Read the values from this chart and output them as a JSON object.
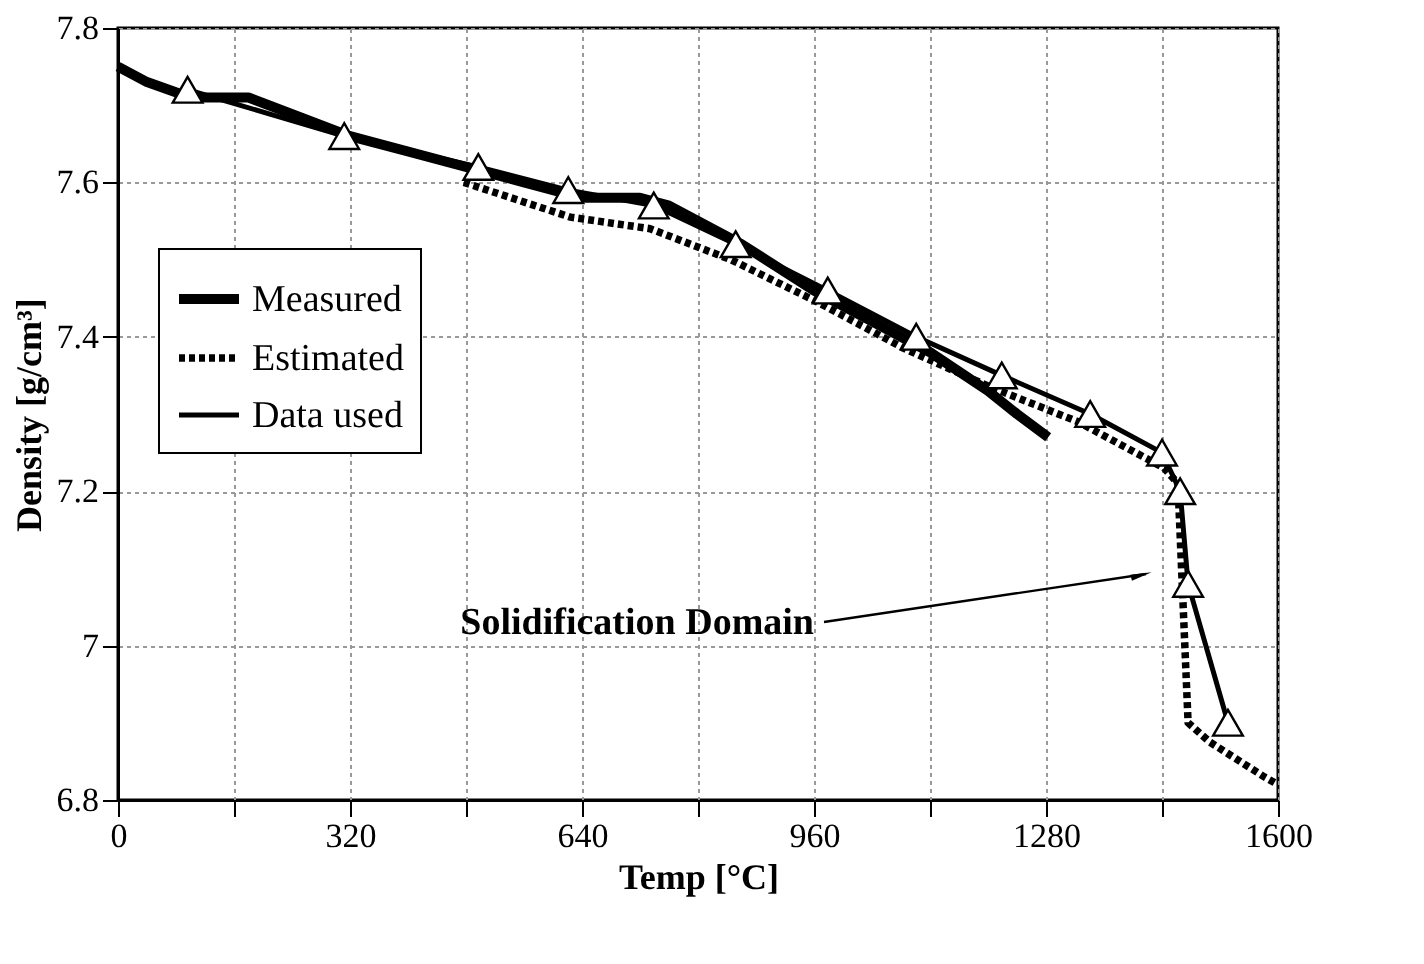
{
  "chart_data": {
    "type": "line",
    "xlabel": "Temp [°C]",
    "ylabel": "Density [g/cm³]",
    "xlim": [
      0,
      1600
    ],
    "ylim": [
      6.8,
      7.8
    ],
    "xticks": [
      0,
      {
        "value": 160,
        "label": null
      },
      320,
      {
        "value": 480,
        "label": null
      },
      640,
      {
        "value": 800,
        "label": null
      },
      960,
      {
        "value": 1120,
        "label": null
      },
      1280,
      {
        "value": 1440,
        "label": null
      },
      1600
    ],
    "yticks": [
      6.8,
      7,
      7.2,
      7.4,
      7.6,
      7.8
    ],
    "grid": true,
    "legend": "left",
    "series": [
      {
        "name": "Measured",
        "color": "#000000",
        "line_style": "solid",
        "marker": "none",
        "x": [
          0,
          40,
          100,
          180,
          320,
          400,
          480,
          560,
          640,
          720,
          760,
          860,
          960,
          1040,
          1120,
          1200,
          1240,
          1283
        ],
        "values": [
          7.75,
          7.73,
          7.71,
          7.71,
          7.66,
          7.64,
          7.62,
          7.6,
          7.58,
          7.58,
          7.57,
          7.52,
          7.46,
          7.42,
          7.38,
          7.33,
          7.3,
          7.27
        ]
      },
      {
        "name": "Estimated",
        "color": "#000000",
        "line_style": "dotted",
        "marker": "none",
        "x": [
          477,
          624,
          734,
          845,
          965,
          1084,
          1203,
          1324,
          1443,
          1462,
          1476,
          1506,
          1581,
          1600
        ],
        "values": [
          7.6,
          7.555,
          7.54,
          7.5,
          7.445,
          7.385,
          7.335,
          7.29,
          7.23,
          7.21,
          6.9,
          6.875,
          6.83,
          6.82
        ]
      },
      {
        "name": "Data used",
        "color": "#000000",
        "line_style": "solid",
        "marker": "triangle",
        "x": [
          96,
          312,
          497,
          621,
          739,
          852,
          979,
          1101,
          1219,
          1341,
          1440,
          1465,
          1476,
          1531
        ],
        "values": [
          7.72,
          7.66,
          7.62,
          7.59,
          7.57,
          7.52,
          7.46,
          7.4,
          7.35,
          7.3,
          7.25,
          7.2,
          7.08,
          6.9
        ]
      }
    ],
    "annotations": [
      "Solidification Domain"
    ]
  }
}
